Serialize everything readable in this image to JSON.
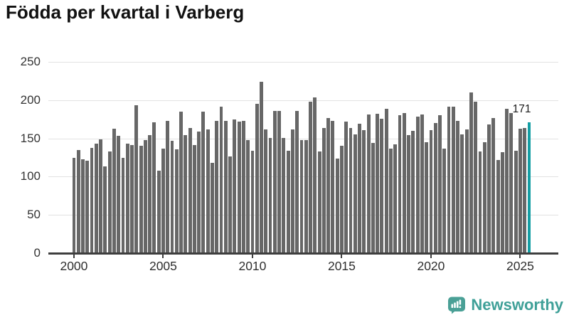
{
  "title": "Födda per kvartal i Varberg",
  "annotation": {
    "label": "171"
  },
  "footer": {
    "brand": "Newsworthy"
  },
  "colors": {
    "bar": "#676767",
    "highlight": "#149ea4",
    "axis": "#3e3e3e",
    "grid": "#e2e2e2",
    "title_text": "#111111",
    "tick_text": "#333333",
    "brand_teal": "#3fa098",
    "logo_bubble": "#4aa096"
  },
  "chart_data": {
    "type": "bar",
    "title": "Födda per kvartal i Varberg",
    "xlabel": "",
    "ylabel": "",
    "ylim": [
      0,
      250
    ],
    "y_ticks": [
      0,
      50,
      100,
      150,
      200,
      250
    ],
    "grid": true,
    "legend": false,
    "x_unit": "quarter",
    "x_start": "2000-Q1",
    "x_end": "2025-Q3",
    "x_tick_indices": [
      0,
      20,
      40,
      60,
      80,
      100
    ],
    "x_tick_labels": [
      "2000",
      "2005",
      "2010",
      "2015",
      "2020",
      "2025"
    ],
    "highlight_last_bar": true,
    "last_bar_value_label": "171",
    "series": [
      {
        "name": "Födda per kvartal",
        "values": [
          125,
          135,
          123,
          121,
          138,
          143,
          149,
          113,
          133,
          163,
          153,
          125,
          143,
          141,
          193,
          140,
          148,
          154,
          171,
          108,
          137,
          173,
          147,
          136,
          185,
          154,
          164,
          141,
          159,
          185,
          162,
          118,
          173,
          191,
          173,
          126,
          175,
          172,
          173,
          148,
          134,
          195,
          224,
          162,
          151,
          186,
          186,
          151,
          134,
          162,
          186,
          148,
          148,
          198,
          204,
          133,
          164,
          177,
          173,
          124,
          140,
          172,
          164,
          155,
          169,
          161,
          181,
          144,
          182,
          176,
          189,
          137,
          142,
          180,
          183,
          154,
          160,
          178,
          181,
          145,
          161,
          170,
          180,
          137,
          191,
          191,
          173,
          155,
          162,
          210,
          198,
          133,
          145,
          168,
          177,
          122,
          132,
          189,
          183,
          134,
          163,
          164,
          171
        ]
      }
    ]
  }
}
